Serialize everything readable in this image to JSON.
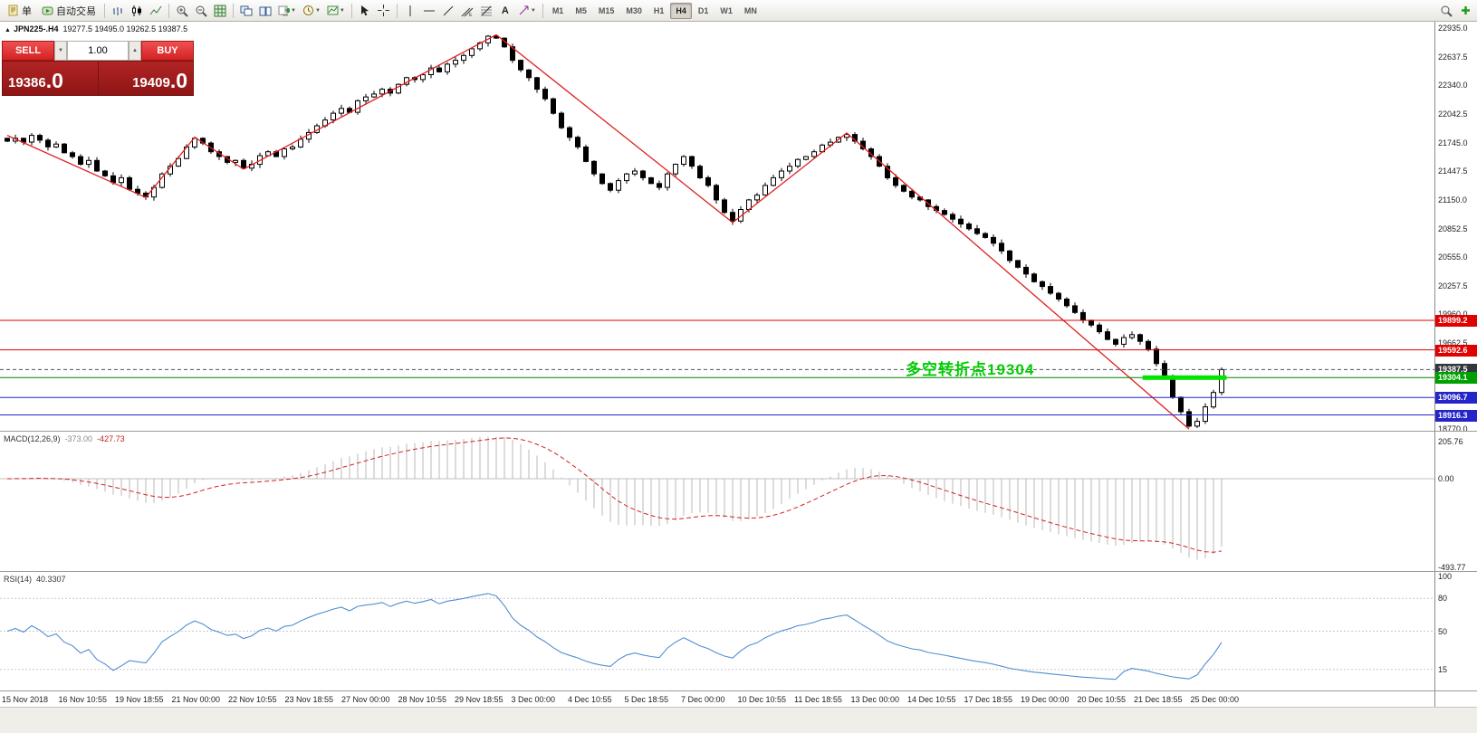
{
  "toolbar": {
    "new_order_label": "单",
    "autotrading_label": "自动交易",
    "text_tool_label": "A",
    "timeframes": [
      "M1",
      "M5",
      "M15",
      "M30",
      "H1",
      "H4",
      "D1",
      "W1",
      "MN"
    ],
    "active_timeframe": "H4"
  },
  "chart": {
    "collapse_icon": "▲",
    "title": "JPN225-.H4",
    "ohlc": "19277.5 19495.0 19262.5 19387.5",
    "trade": {
      "sell_label": "SELL",
      "buy_label": "BUY",
      "volume": "1.00",
      "sell_main": "19386",
      "sell_frac": ".0",
      "buy_main": "19409",
      "buy_frac": ".0"
    },
    "annotation": {
      "text": "多空转折点19304",
      "color": "#00cc00"
    },
    "hlines": [
      {
        "price": 19899.2,
        "label": "19899.2",
        "color": "#e00000",
        "tag": "#e00000",
        "style": "solid"
      },
      {
        "price": 19592.6,
        "label": "19592.6",
        "color": "#e00000",
        "tag": "#e00000",
        "style": "solid"
      },
      {
        "price": 19387.5,
        "label": "19387.5",
        "color": "#50565c",
        "tag": "#31373d",
        "style": "dash"
      },
      {
        "price": 19304.1,
        "label": "19304.1",
        "color": "#008000",
        "tag": "#00a000",
        "style": "solid",
        "thick_from_i": 139.3,
        "thick_to_i": 149.6,
        "thick_color": "#00e400"
      },
      {
        "price": 19096.7,
        "label": "19096.7",
        "color": "#2424c8",
        "tag": "#2424c8",
        "style": "solid"
      },
      {
        "price": 18916.3,
        "label": "18916.3",
        "color": "#2424c8",
        "tag": "#2424c8",
        "style": "solid"
      }
    ],
    "price_axis": {
      "top": 22935.0,
      "step": 297.5,
      "count": 15
    }
  },
  "chart_data": {
    "type": "candlestick",
    "symbol": "JPN225-",
    "timeframe": "H4",
    "ohlc_display": {
      "open": 19277.5,
      "high": 19495.0,
      "low": 19262.5,
      "close": 19387.5
    },
    "closes": [
      21760,
      21790,
      21750,
      21820,
      21770,
      21700,
      21730,
      21640,
      21600,
      21520,
      21560,
      21450,
      21400,
      21330,
      21380,
      21260,
      21220,
      21180,
      21280,
      21420,
      21500,
      21580,
      21700,
      21790,
      21740,
      21650,
      21600,
      21540,
      21560,
      21480,
      21520,
      21610,
      21650,
      21600,
      21680,
      21700,
      21780,
      21850,
      21920,
      21980,
      22050,
      22100,
      22060,
      22180,
      22220,
      22250,
      22300,
      22260,
      22350,
      22420,
      22400,
      22450,
      22520,
      22480,
      22560,
      22600,
      22650,
      22720,
      22780,
      22850,
      22830,
      22740,
      22600,
      22500,
      22420,
      22300,
      22200,
      22050,
      21900,
      21800,
      21700,
      21550,
      21420,
      21320,
      21250,
      21350,
      21420,
      21450,
      21380,
      21320,
      21280,
      21420,
      21520,
      21600,
      21500,
      21380,
      21300,
      21150,
      21020,
      20930,
      21050,
      21150,
      21200,
      21300,
      21380,
      21450,
      21500,
      21570,
      21600,
      21650,
      21720,
      21750,
      21800,
      21830,
      21760,
      21680,
      21600,
      21500,
      21380,
      21300,
      21240,
      21180,
      21150,
      21080,
      21040,
      21000,
      20950,
      20900,
      20850,
      20800,
      20760,
      20700,
      20620,
      20520,
      20450,
      20380,
      20300,
      20250,
      20180,
      20120,
      20050,
      19980,
      19900,
      19850,
      19780,
      19700,
      19650,
      19720,
      19750,
      19680,
      19600,
      19450,
      19300,
      19100,
      18950,
      18800,
      18850,
      19000,
      19150,
      19387.5
    ],
    "zigzag": [
      [
        0,
        21820
      ],
      [
        17,
        21175
      ],
      [
        23,
        21800
      ],
      [
        29,
        21470
      ],
      [
        60,
        22865
      ],
      [
        89,
        20915
      ],
      [
        103,
        21845
      ],
      [
        145,
        18770
      ]
    ],
    "indicators": {
      "macd": {
        "name": "MACD(12,26,9)",
        "value_main": "-373.00",
        "value_signal": "-427.73",
        "axis_max": 205.76,
        "axis_zero": 0.0,
        "axis_min": -493.77,
        "axis_labels": [
          "205.76",
          "0.00",
          "-493.77"
        ]
      },
      "rsi": {
        "name": "RSI(14)",
        "value": "40.3307",
        "levels": [
          80,
          50,
          15
        ],
        "axis_labels": [
          "100",
          "80",
          "50",
          "15"
        ],
        "axis_values": [
          100,
          80,
          50,
          15
        ]
      }
    },
    "time_labels": [
      "15 Nov 2018",
      "16 Nov 10:55",
      "19 Nov 18:55",
      "21 Nov 00:00",
      "22 Nov 10:55",
      "23 Nov 18:55",
      "27 Nov 00:00",
      "28 Nov 10:55",
      "29 Nov 18:55",
      "3 Dec 00:00",
      "4 Dec 10:55",
      "5 Dec 18:55",
      "7 Dec 00:00",
      "10 Dec 10:55",
      "11 Dec 18:55",
      "13 Dec 00:00",
      "14 Dec 10:55",
      "17 Dec 18:55",
      "19 Dec 00:00",
      "20 Dec 10:55",
      "21 Dec 18:55",
      "25 Dec 00:00"
    ]
  }
}
